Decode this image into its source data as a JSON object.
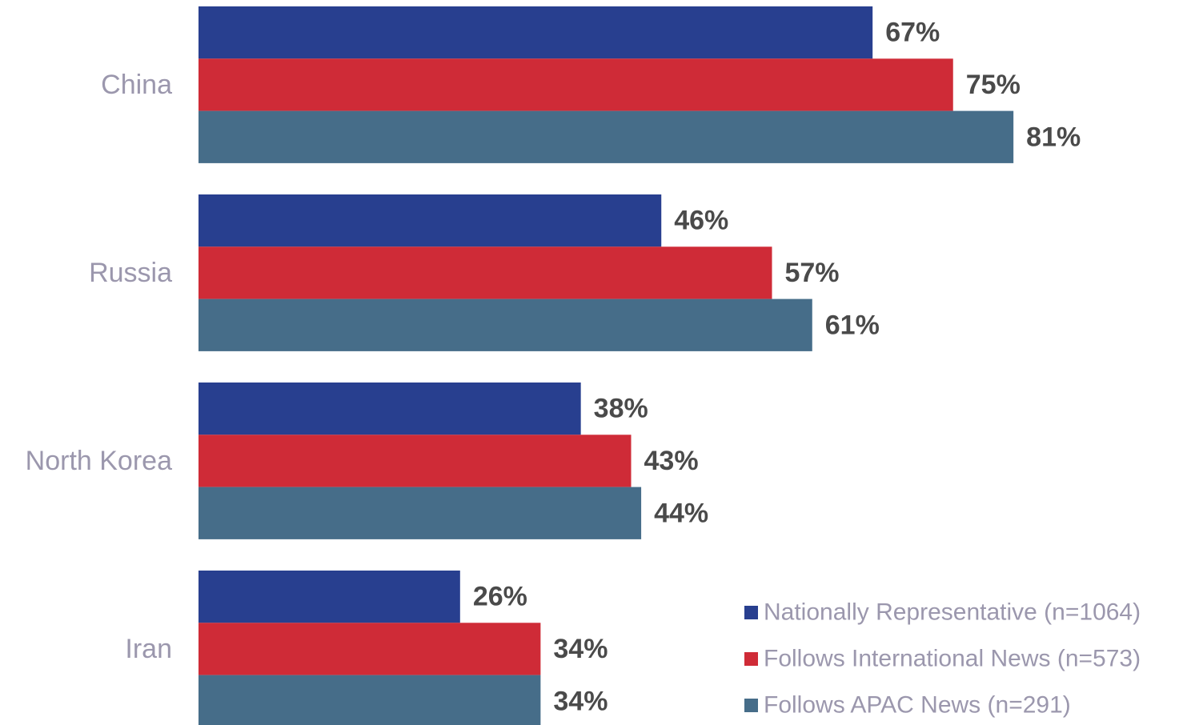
{
  "chart_data": {
    "type": "bar",
    "orientation": "horizontal",
    "categories": [
      "China",
      "Russia",
      "North Korea",
      "Iran"
    ],
    "series": [
      {
        "name": "Nationally Representative (n=1064)",
        "values": [
          67,
          46,
          38,
          26
        ],
        "labels": [
          "67%",
          "46%",
          "38%",
          "26%"
        ],
        "color": "#283f8f"
      },
      {
        "name": "Follows International News (n=573)",
        "values": [
          75,
          57,
          43,
          34
        ],
        "labels": [
          "75%",
          "57%",
          "43%",
          "34%"
        ],
        "color": "#cf2b37"
      },
      {
        "name": "Follows APAC News (n=291)",
        "values": [
          81,
          61,
          44,
          34
        ],
        "labels": [
          "81%",
          "61%",
          "44%",
          "34%"
        ],
        "color": "#466d89"
      }
    ],
    "value_unit": "%",
    "xlim": [
      0,
      100
    ],
    "grid": false,
    "legend_position": "bottom-right",
    "title": "",
    "xlabel": "",
    "ylabel": ""
  },
  "colors": {
    "category_label": "#9b97ad",
    "value_label": "#4a4a4a",
    "legend_text": "#9b97ad"
  }
}
